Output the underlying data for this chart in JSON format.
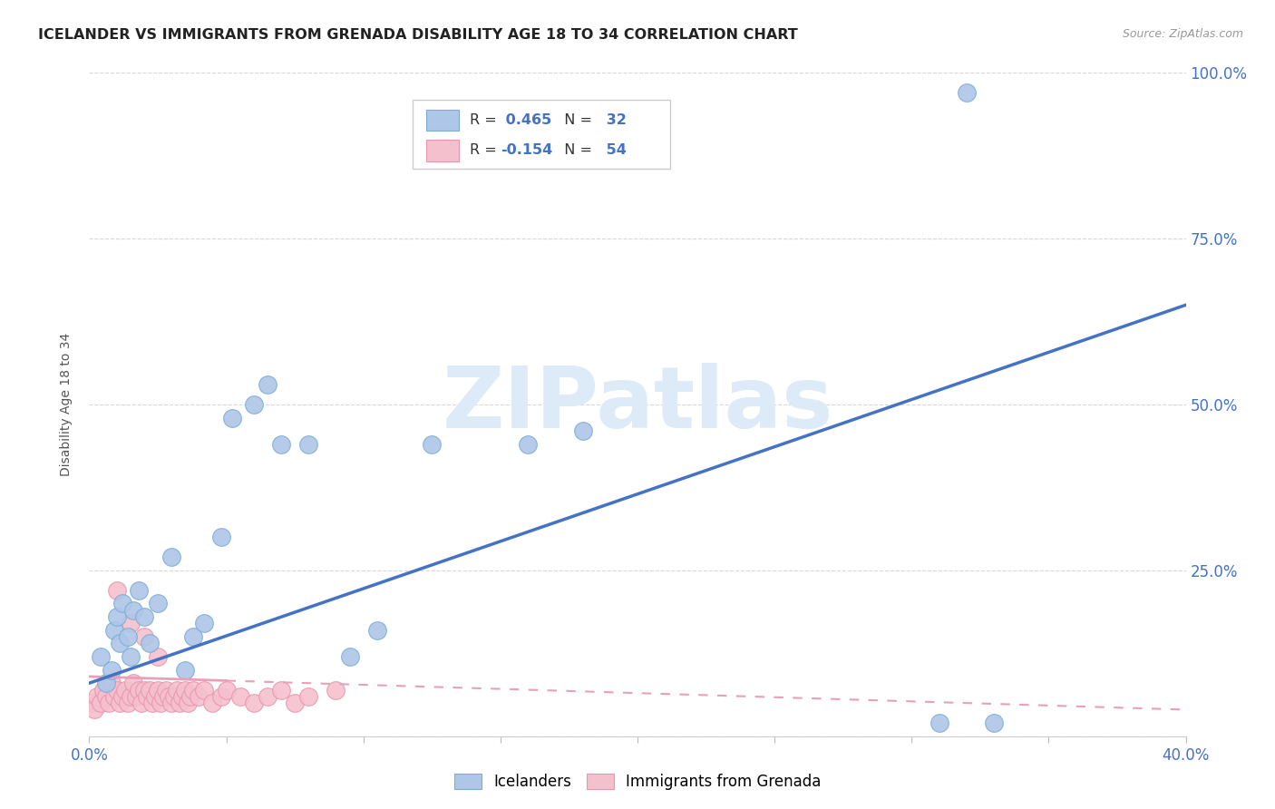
{
  "title": "ICELANDER VS IMMIGRANTS FROM GRENADA DISABILITY AGE 18 TO 34 CORRELATION CHART",
  "source": "Source: ZipAtlas.com",
  "ylabel": "Disability Age 18 to 34",
  "xlim": [
    0.0,
    0.4
  ],
  "ylim": [
    0.0,
    1.0
  ],
  "xticks": [
    0.0,
    0.05,
    0.1,
    0.15,
    0.2,
    0.25,
    0.3,
    0.35,
    0.4
  ],
  "yticks": [
    0.0,
    0.25,
    0.5,
    0.75,
    1.0
  ],
  "yticklabels_right": [
    "",
    "25.0%",
    "50.0%",
    "75.0%",
    "100.0%"
  ],
  "background_color": "#ffffff",
  "grid_color": "#d8d8d8",
  "icelanders_color": "#aec6e8",
  "icelanders_edge_color": "#7aaed6",
  "grenada_color": "#f5c0ce",
  "grenada_edge_color": "#e896ae",
  "icelanders_line_color": "#4472c4",
  "grenada_line_color": "#e8a0b8",
  "R_ice": 0.465,
  "N_ice": 32,
  "R_gren": -0.154,
  "N_gren": 54,
  "legend_text_color": "#333333",
  "legend_R_color": "#4472c4",
  "tick_color": "#4472c4",
  "icelanders_x": [
    0.004,
    0.006,
    0.008,
    0.009,
    0.01,
    0.011,
    0.012,
    0.014,
    0.015,
    0.016,
    0.018,
    0.02,
    0.022,
    0.025,
    0.03,
    0.035,
    0.038,
    0.042,
    0.048,
    0.052,
    0.06,
    0.065,
    0.07,
    0.08,
    0.095,
    0.105,
    0.125,
    0.16,
    0.18,
    0.31,
    0.32,
    0.33
  ],
  "icelanders_y": [
    0.12,
    0.08,
    0.1,
    0.16,
    0.18,
    0.14,
    0.2,
    0.15,
    0.12,
    0.19,
    0.22,
    0.18,
    0.14,
    0.2,
    0.27,
    0.1,
    0.15,
    0.17,
    0.3,
    0.48,
    0.5,
    0.53,
    0.44,
    0.44,
    0.12,
    0.16,
    0.44,
    0.44,
    0.46,
    0.02,
    0.97,
    0.02
  ],
  "grenada_x": [
    0.001,
    0.002,
    0.003,
    0.004,
    0.005,
    0.006,
    0.007,
    0.008,
    0.009,
    0.01,
    0.011,
    0.012,
    0.013,
    0.014,
    0.015,
    0.016,
    0.017,
    0.018,
    0.019,
    0.02,
    0.021,
    0.022,
    0.023,
    0.024,
    0.025,
    0.026,
    0.027,
    0.028,
    0.029,
    0.03,
    0.031,
    0.032,
    0.033,
    0.034,
    0.035,
    0.036,
    0.037,
    0.038,
    0.04,
    0.042,
    0.045,
    0.048,
    0.05,
    0.055,
    0.06,
    0.065,
    0.07,
    0.075,
    0.08,
    0.09,
    0.01,
    0.015,
    0.02,
    0.025
  ],
  "grenada_y": [
    0.05,
    0.04,
    0.06,
    0.05,
    0.07,
    0.06,
    0.05,
    0.08,
    0.06,
    0.07,
    0.05,
    0.06,
    0.07,
    0.05,
    0.06,
    0.08,
    0.06,
    0.07,
    0.05,
    0.07,
    0.06,
    0.07,
    0.05,
    0.06,
    0.07,
    0.05,
    0.06,
    0.07,
    0.06,
    0.05,
    0.06,
    0.07,
    0.05,
    0.06,
    0.07,
    0.05,
    0.06,
    0.07,
    0.06,
    0.07,
    0.05,
    0.06,
    0.07,
    0.06,
    0.05,
    0.06,
    0.07,
    0.05,
    0.06,
    0.07,
    0.22,
    0.17,
    0.15,
    0.12
  ],
  "watermark_text": "ZIPatlas",
  "watermark_color": "#dde8f5"
}
